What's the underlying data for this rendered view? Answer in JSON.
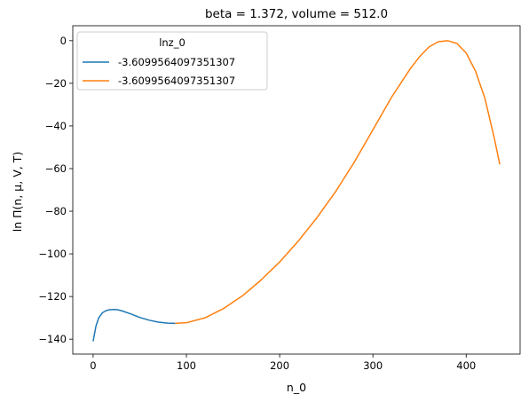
{
  "chart_data": {
    "type": "line",
    "title": "beta = 1.372, volume = 512.0",
    "xlabel": "n_0",
    "ylabel": "ln Π(n, μ, V, T)",
    "xlim": [
      -21.8,
      457.8
    ],
    "ylim": [
      -147.0,
      7.0
    ],
    "xticks": [
      0,
      100,
      200,
      300,
      400
    ],
    "yticks": [
      0,
      -20,
      -40,
      -60,
      -80,
      -100,
      -120,
      -140
    ],
    "grid": false,
    "legend": {
      "title": "lnz_0",
      "placement": "top-left",
      "entries": [
        "-3.6099564097351307",
        "-3.6099564097351307"
      ]
    },
    "series": [
      {
        "name": "-3.6099564097351307",
        "color": "#1f77b4",
        "x": [
          0,
          3,
          6,
          10,
          14,
          18,
          22,
          26,
          30,
          40,
          50,
          60,
          70,
          80,
          88
        ],
        "y": [
          -141.0,
          -134.0,
          -130.0,
          -127.6,
          -126.6,
          -126.2,
          -126.1,
          -126.2,
          -126.6,
          -128.1,
          -129.8,
          -131.1,
          -132.0,
          -132.5,
          -132.6
        ]
      },
      {
        "name": "-3.6099564097351307",
        "color": "#ff7f0e",
        "x": [
          88,
          100,
          120,
          140,
          160,
          180,
          200,
          220,
          240,
          260,
          280,
          300,
          320,
          340,
          350,
          360,
          370,
          380,
          390,
          400,
          410,
          420,
          430,
          436
        ],
        "y": [
          -132.6,
          -132.3,
          -130.0,
          -125.6,
          -119.7,
          -112.3,
          -103.8,
          -94.0,
          -83.0,
          -70.8,
          -57.0,
          -41.8,
          -26.5,
          -13.2,
          -7.5,
          -3.0,
          -0.5,
          0.0,
          -1.3,
          -5.8,
          -14.3,
          -27.0,
          -45.5,
          -58.0
        ]
      }
    ]
  }
}
